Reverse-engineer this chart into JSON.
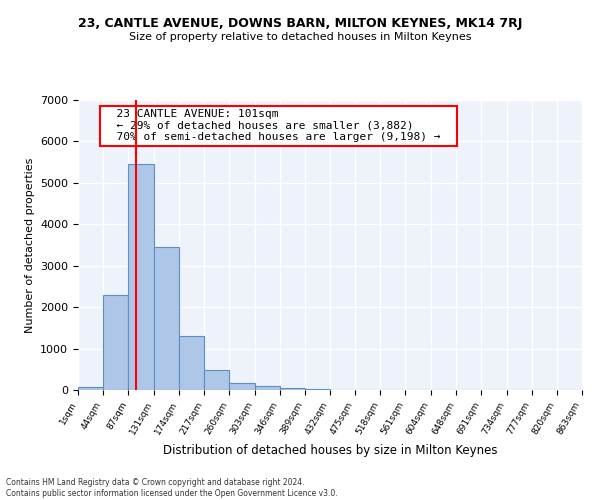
{
  "title1": "23, CANTLE AVENUE, DOWNS BARN, MILTON KEYNES, MK14 7RJ",
  "title2": "Size of property relative to detached houses in Milton Keynes",
  "xlabel": "Distribution of detached houses by size in Milton Keynes",
  "ylabel": "Number of detached properties",
  "bin_edges": [
    1,
    44,
    87,
    131,
    174,
    217,
    260,
    303,
    346,
    389,
    432,
    475,
    518,
    561,
    604,
    648,
    691,
    734,
    777,
    820,
    863
  ],
  "bin_labels": [
    "1sqm",
    "44sqm",
    "87sqm",
    "131sqm",
    "174sqm",
    "217sqm",
    "260sqm",
    "303sqm",
    "346sqm",
    "389sqm",
    "432sqm",
    "475sqm",
    "518sqm",
    "561sqm",
    "604sqm",
    "648sqm",
    "691sqm",
    "734sqm",
    "777sqm",
    "820sqm",
    "863sqm"
  ],
  "bar_heights": [
    80,
    2300,
    5450,
    3450,
    1300,
    480,
    175,
    100,
    50,
    20,
    5,
    0,
    0,
    0,
    0,
    0,
    0,
    0,
    0,
    0
  ],
  "bar_color": "#aec6e8",
  "bar_edge_color": "#5a8fc0",
  "vline_x": 101,
  "vline_color": "red",
  "annotation_text": "  23 CANTLE AVENUE: 101sqm  \n  ← 29% of detached houses are smaller (3,882)  \n  70% of semi-detached houses are larger (9,198) →  ",
  "annotation_box_color": "white",
  "annotation_box_edge": "red",
  "ylim": [
    0,
    7000
  ],
  "background_color": "#eef2fb",
  "grid_color": "white",
  "footnote1": "Contains HM Land Registry data © Crown copyright and database right 2024.",
  "footnote2": "Contains public sector information licensed under the Open Government Licence v3.0."
}
